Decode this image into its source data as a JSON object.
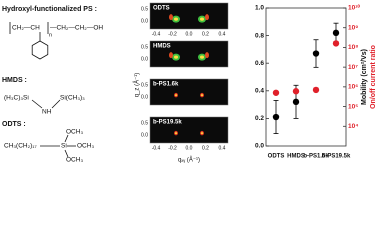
{
  "structures": {
    "ps_title": "Hydroxyl-functionalized PS :",
    "ps_repeat": "CH₂—CH",
    "ps_n": "n",
    "ps_end": "—CH₂—CH₂—OH",
    "hmds_label": "HMDS :",
    "hmds_left": "(H₃C)₃Si",
    "hmds_nh": "NH",
    "hmds_right": "Si(CH₃)₃",
    "odts_label": "ODTS :",
    "odts_chain": "CH₃(CH₂)₁₇",
    "odts_si": "Si",
    "odts_och3": [
      "OCH₃",
      "OCH₃",
      "OCH₃"
    ]
  },
  "giwaxs": {
    "panels": [
      "ODTS",
      "HMDS",
      "b-PS1.6k",
      "b-PS19.5k"
    ],
    "xlabel": "qₓᵧ (Å⁻¹)",
    "ylabel": "q_z (Å⁻¹)",
    "xtick_labels": [
      "-0.4",
      "-0.2",
      "0.0",
      "0.2",
      "0.4"
    ],
    "ytick_labels": [
      "0.5",
      "0.0"
    ]
  },
  "chart_data": {
    "type": "scatter",
    "categories": [
      "ODTS",
      "HMDS",
      "b-PS1.6k",
      "b-PS19.5k"
    ],
    "ylabel": "Mobility (cm²/Vs)",
    "y2label": "On/off current ratio",
    "ylim": [
      0.0,
      1.0
    ],
    "yticks": [
      {
        "value": 0.0,
        "label": "0.0"
      },
      0.2,
      0.4,
      0.6,
      0.8,
      {
        "value": 1.0,
        "label": "1.0"
      }
    ],
    "y2lim": [
      1000,
      10000000000
    ],
    "y2scale": "log",
    "y2ticks": [
      {
        "value": 10000,
        "label": "10⁴"
      },
      {
        "value": 100000,
        "label": "10⁵"
      },
      {
        "value": 1000000,
        "label": "10⁶"
      },
      {
        "value": 10000000,
        "label": "10⁷"
      },
      {
        "value": 100000000,
        "label": "10⁸"
      },
      {
        "value": 1000000000,
        "label": "10⁹"
      },
      {
        "value": 10000000000,
        "label": "10¹⁰"
      }
    ],
    "series": [
      {
        "name": "Mobility",
        "color": "#000000",
        "values": [
          0.21,
          0.32,
          0.67,
          0.82
        ],
        "errors": [
          0.12,
          0.12,
          0.1,
          0.07
        ]
      },
      {
        "name": "On/off current ratio",
        "color": "#e0202a",
        "axis": "y2",
        "values": [
          500000,
          600000,
          700000,
          160000000
        ]
      }
    ]
  }
}
